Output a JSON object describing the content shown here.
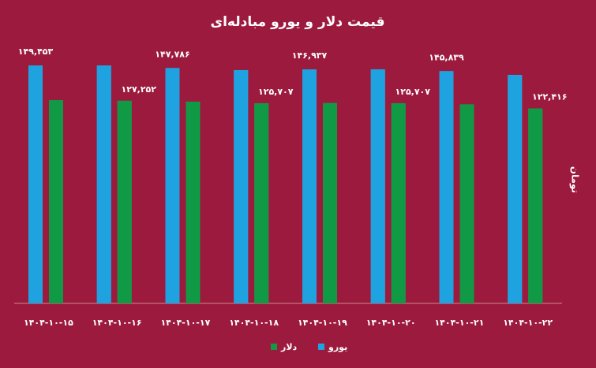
{
  "chart_data": {
    "type": "bar",
    "title": "قیمت دلار و یورو مبادله‌ای",
    "y_label": "تومان",
    "categories": [
      "۱۴۰۴-۱۰-۱۵",
      "۱۴۰۴-۱۰-۱۶",
      "۱۴۰۴-۱۰-۱۷",
      "۱۴۰۴-۱۰-۱۸",
      "۱۴۰۴-۱۰-۱۹",
      "۱۴۰۴-۱۰-۲۰",
      "۱۴۰۴-۱۰-۲۱",
      "۱۴۰۴-۱۰-۲۲"
    ],
    "series": [
      {
        "name": "یورو",
        "color": "#1fa3e0",
        "values": [
          149453,
          149400,
          147786,
          146500,
          146937,
          147000,
          145839,
          143500
        ],
        "value_labels": [
          "۱۴۹,۴۵۳",
          null,
          "۱۴۷,۷۸۶",
          null,
          "۱۴۶,۹۳۷",
          null,
          "۱۴۵,۸۳۹",
          null
        ]
      },
      {
        "name": "دلار",
        "color": "#119a45",
        "values": [
          127600,
          127252,
          126700,
          125707,
          125800,
          125707,
          125000,
          122416
        ],
        "value_labels": [
          null,
          "۱۲۷,۲۵۲",
          null,
          "۱۲۵,۷۰۷",
          null,
          "۱۲۵,۷۰۷",
          null,
          "۱۲۲,۴۱۶"
        ]
      }
    ]
  }
}
